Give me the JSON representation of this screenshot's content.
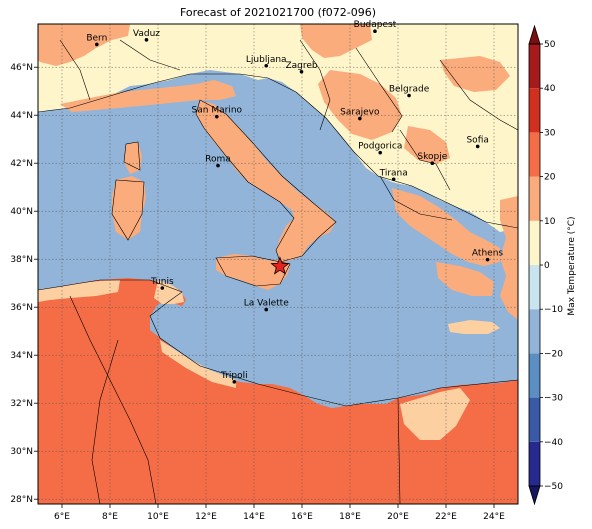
{
  "title": "Forecast of 2021021700 (f072-096)",
  "map": {
    "lon_range": [
      5,
      25
    ],
    "lat_range": [
      27.8,
      47.8
    ],
    "x_ticks": [
      {
        "lon": 6,
        "label": "6°E"
      },
      {
        "lon": 8,
        "label": "8°E"
      },
      {
        "lon": 10,
        "label": "10°E"
      },
      {
        "lon": 12,
        "label": "12°E"
      },
      {
        "lon": 14,
        "label": "14°E"
      },
      {
        "lon": 16,
        "label": "16°E"
      },
      {
        "lon": 18,
        "label": "18°E"
      },
      {
        "lon": 20,
        "label": "20°E"
      },
      {
        "lon": 22,
        "label": "22°E"
      },
      {
        "lon": 24,
        "label": "24°E"
      }
    ],
    "y_ticks": [
      {
        "lat": 28,
        "label": "28°N"
      },
      {
        "lat": 30,
        "label": "30°N"
      },
      {
        "lat": 32,
        "label": "32°N"
      },
      {
        "lat": 34,
        "label": "34°N"
      },
      {
        "lat": 36,
        "label": "36°N"
      },
      {
        "lat": 38,
        "label": "38°N"
      },
      {
        "lat": 40,
        "label": "40°N"
      },
      {
        "lat": 42,
        "label": "42°N"
      },
      {
        "lat": 44,
        "label": "44°N"
      },
      {
        "lat": 46,
        "label": "46°N"
      }
    ],
    "cities": [
      {
        "name": "Bern",
        "lon": 7.45,
        "lat": 46.95
      },
      {
        "name": "Vaduz",
        "lon": 9.52,
        "lat": 47.14
      },
      {
        "name": "Budapest",
        "lon": 19.04,
        "lat": 47.5
      },
      {
        "name": "Ljubljana",
        "lon": 14.51,
        "lat": 46.06
      },
      {
        "name": "Zagreb",
        "lon": 15.98,
        "lat": 45.81
      },
      {
        "name": "San Marino",
        "lon": 12.45,
        "lat": 43.94
      },
      {
        "name": "Belgrade",
        "lon": 20.46,
        "lat": 44.82
      },
      {
        "name": "Sarajevo",
        "lon": 18.41,
        "lat": 43.86
      },
      {
        "name": "Roma",
        "lon": 12.5,
        "lat": 41.9
      },
      {
        "name": "Podgorica",
        "lon": 19.26,
        "lat": 42.44
      },
      {
        "name": "Skopje",
        "lon": 21.43,
        "lat": 42.0
      },
      {
        "name": "Sofia",
        "lon": 23.32,
        "lat": 42.7
      },
      {
        "name": "Tirana",
        "lon": 19.82,
        "lat": 41.33
      },
      {
        "name": "Athens",
        "lon": 23.73,
        "lat": 37.98
      },
      {
        "name": "Tunis",
        "lon": 10.18,
        "lat": 36.8
      },
      {
        "name": "La Valette",
        "lon": 14.51,
        "lat": 35.9
      },
      {
        "name": "Tripoli",
        "lon": 13.18,
        "lat": 32.89
      }
    ],
    "marker": {
      "type": "star",
      "lon": 15.08,
      "lat": 37.7,
      "color": "#e8231f"
    },
    "grid": true
  },
  "colors": {
    "sea": "#91b4d8",
    "land_10_20": "#fbac7c",
    "land_20_30": "#f56d47",
    "land_0_10": "#fef6ca",
    "land_warm_light": "#fdd0a2"
  },
  "colorbar": {
    "label": "Max Temperature (°C)",
    "min": -50,
    "max": 50,
    "tick_values": [
      -50,
      -40,
      -30,
      -20,
      -10,
      0,
      10,
      20,
      30,
      40,
      50
    ],
    "tick_labels": [
      "−50",
      "−40",
      "−30",
      "−20",
      "−10",
      "0",
      "10",
      "20",
      "30",
      "40",
      "50"
    ],
    "segments": [
      {
        "from": -50,
        "to": -40,
        "color": "#262a8e"
      },
      {
        "from": -40,
        "to": -30,
        "color": "#3a5aa8"
      },
      {
        "from": -30,
        "to": -20,
        "color": "#5b8ec2"
      },
      {
        "from": -20,
        "to": -10,
        "color": "#91b4d8"
      },
      {
        "from": -10,
        "to": 0,
        "color": "#c9e3ef"
      },
      {
        "from": 0,
        "to": 10,
        "color": "#fef6ca"
      },
      {
        "from": 10,
        "to": 20,
        "color": "#fbac7c"
      },
      {
        "from": 20,
        "to": 30,
        "color": "#f56d47"
      },
      {
        "from": 30,
        "to": 40,
        "color": "#d2301f"
      },
      {
        "from": 40,
        "to": 50,
        "color": "#a51a1a"
      }
    ],
    "extend_low_color": "#141660",
    "extend_high_color": "#7b0e10"
  }
}
